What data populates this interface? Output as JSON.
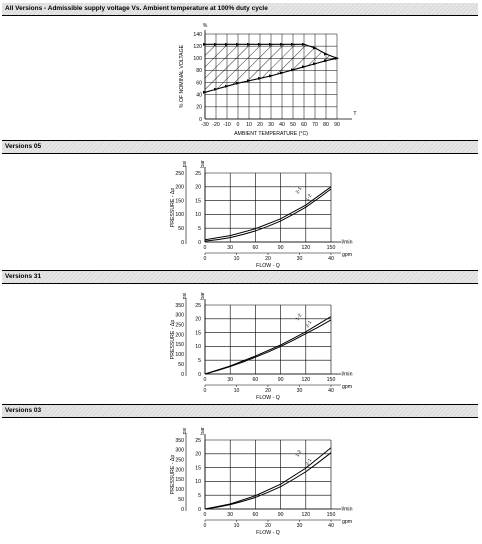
{
  "sections": [
    {
      "id": "s1",
      "title": "All Versions - Admissible supply voltage Vs. Ambient temperature at 100% duty cycle"
    },
    {
      "id": "s2",
      "title": "Versions 05"
    },
    {
      "id": "s3",
      "title": "Versions 31"
    },
    {
      "id": "s4",
      "title": "Versions 03"
    }
  ],
  "chart_data": [
    {
      "type": "area",
      "ylabel": "% OF NOMINAL VOLTAGE",
      "yunit": "%",
      "xlabel": "AMBIENT TEMPERATURE (°C)",
      "xunit": "T",
      "xlim": [
        -30,
        90
      ],
      "ylim": [
        0,
        140
      ],
      "xticks": [
        -30,
        -20,
        -10,
        0,
        10,
        20,
        30,
        40,
        50,
        60,
        70,
        80,
        90
      ],
      "yticks": [
        0,
        20,
        40,
        60,
        80,
        100,
        120,
        140
      ],
      "xtick_labels": [
        "-30",
        "-20",
        "-10",
        "0",
        "10",
        "20",
        "30",
        "40",
        "50",
        "60",
        "70",
        "80",
        "90"
      ],
      "ytick_labels": [
        "0",
        "20",
        "40",
        "60",
        "80",
        "100",
        "120",
        "140"
      ],
      "grid": true,
      "series": [
        {
          "x": [
            -30,
            -20,
            -10,
            0,
            10,
            20,
            30,
            40,
            50,
            60,
            70,
            80,
            90
          ],
          "values": [
            123,
            123,
            123,
            123,
            123,
            123,
            123,
            123,
            123,
            123,
            117,
            107,
            100
          ]
        },
        {
          "x": [
            -30,
            -20,
            -10,
            0,
            10,
            20,
            30,
            40,
            50,
            60,
            70,
            80,
            90
          ],
          "values": [
            44,
            49,
            54,
            59,
            63,
            67,
            71,
            76,
            81,
            86,
            91,
            96,
            100
          ]
        }
      ]
    },
    {
      "type": "line",
      "ylabel": "PRESSURE - Δp",
      "y_units": [
        "bar",
        "psi"
      ],
      "xlabel": "FLOW - Q",
      "x_units": [
        "l/min",
        "gpm"
      ],
      "xlim": [
        0,
        150
      ],
      "ylim": [
        0,
        25
      ],
      "xticks": [
        0,
        30,
        60,
        90,
        120,
        150
      ],
      "yticks": [
        0,
        5,
        10,
        15,
        20,
        25
      ],
      "y2ticks": [
        0,
        50,
        100,
        150,
        200,
        250
      ],
      "x2ticks": [
        0,
        10,
        20,
        30,
        40
      ],
      "xtick_labels": [
        "0",
        "30",
        "60",
        "90",
        "120",
        "150"
      ],
      "ytick_labels": [
        "0",
        "5",
        "10",
        "15",
        "20",
        "25"
      ],
      "y2tick_labels": [
        "0",
        "50",
        "100",
        "150",
        "200",
        "250"
      ],
      "x2tick_labels": [
        "0",
        "10",
        "20",
        "30",
        "40"
      ],
      "grid": true,
      "series": [
        {
          "name": "2-1",
          "x": [
            0,
            30,
            60,
            90,
            120,
            150
          ],
          "values": [
            0.8,
            2.3,
            4.8,
            8.4,
            13.4,
            20.0
          ]
        },
        {
          "name": "1-2",
          "x": [
            0,
            30,
            60,
            90,
            120,
            150
          ],
          "values": [
            0.3,
            1.6,
            4.0,
            7.6,
            12.6,
            19.2
          ]
        }
      ]
    },
    {
      "type": "line",
      "ylabel": "PRESSURE - Δp",
      "y_units": [
        "bar",
        "psi"
      ],
      "xlabel": "FLOW - Q",
      "x_units": [
        "l/min",
        "gpm"
      ],
      "xlim": [
        0,
        150
      ],
      "ylim": [
        0,
        25
      ],
      "xticks": [
        0,
        30,
        60,
        90,
        120,
        150
      ],
      "yticks": [
        0,
        5,
        10,
        15,
        20,
        25
      ],
      "y2ticks": [
        0,
        50,
        100,
        150,
        200,
        250,
        300,
        350
      ],
      "x2ticks": [
        0,
        10,
        20,
        30,
        40
      ],
      "xtick_labels": [
        "0",
        "30",
        "60",
        "90",
        "120",
        "150"
      ],
      "ytick_labels": [
        "0",
        "5",
        "10",
        "15",
        "20",
        "25"
      ],
      "y2tick_labels": [
        "0",
        "50",
        "100",
        "150",
        "200",
        "250",
        "300",
        "350"
      ],
      "x2tick_labels": [
        "0",
        "10",
        "20",
        "30",
        "40"
      ],
      "grid": true,
      "series": [
        {
          "name": "1-2",
          "x": [
            0,
            30,
            60,
            90,
            120,
            150
          ],
          "values": [
            0.0,
            2.9,
            6.5,
            10.5,
            15.3,
            20.8
          ]
        },
        {
          "name": "2-1",
          "x": [
            0,
            30,
            60,
            90,
            120,
            150
          ],
          "values": [
            0.0,
            2.7,
            6.1,
            10.0,
            14.6,
            19.6
          ]
        }
      ]
    },
    {
      "type": "line",
      "ylabel": "PRESSURE - Δp",
      "y_units": [
        "bar",
        "psi"
      ],
      "xlabel": "FLOW - Q",
      "x_units": [
        "l/min",
        "gpm"
      ],
      "xlim": [
        0,
        150
      ],
      "ylim": [
        0,
        25
      ],
      "xticks": [
        0,
        30,
        60,
        90,
        120,
        150
      ],
      "yticks": [
        0,
        5,
        10,
        15,
        20,
        25
      ],
      "y2ticks": [
        0,
        50,
        100,
        150,
        200,
        250,
        300,
        350
      ],
      "x2ticks": [
        0,
        10,
        20,
        30,
        40
      ],
      "xtick_labels": [
        "0",
        "30",
        "60",
        "90",
        "120",
        "150"
      ],
      "ytick_labels": [
        "0",
        "5",
        "10",
        "15",
        "20",
        "25"
      ],
      "y2tick_labels": [
        "0",
        "50",
        "100",
        "150",
        "200",
        "250",
        "300",
        "350"
      ],
      "x2tick_labels": [
        "0",
        "10",
        "20",
        "30",
        "40"
      ],
      "grid": true,
      "series": [
        {
          "name": "1-2",
          "x": [
            0,
            30,
            60,
            90,
            120,
            150
          ],
          "values": [
            0.0,
            1.8,
            4.8,
            9.0,
            14.8,
            22.2
          ]
        },
        {
          "name": "2-1",
          "x": [
            0,
            30,
            60,
            90,
            120,
            150
          ],
          "values": [
            0.0,
            1.6,
            4.2,
            8.1,
            13.5,
            20.4
          ]
        }
      ]
    }
  ]
}
